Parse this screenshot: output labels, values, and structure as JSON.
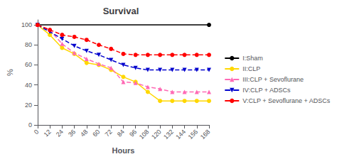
{
  "chart_data": {
    "type": "line",
    "title": "Survival",
    "xlabel": "Hours",
    "ylabel": "%",
    "xlim": [
      0,
      168
    ],
    "ylim": [
      0,
      105
    ],
    "xticks": [
      0,
      12,
      24,
      36,
      48,
      60,
      72,
      84,
      96,
      108,
      120,
      132,
      144,
      156,
      168
    ],
    "yticks": [
      0,
      20,
      40,
      60,
      80,
      100
    ],
    "grid": false,
    "legend": "right",
    "series": [
      {
        "name": "I:Sham",
        "color": "#000000",
        "marker": "circle",
        "line_style": "solid",
        "x": [
          0,
          168
        ],
        "values": [
          100,
          100
        ]
      },
      {
        "name": "II:CLP",
        "color": "#FFD700",
        "marker": "circle",
        "line_style": "solid",
        "x": [
          0,
          12,
          24,
          36,
          48,
          60,
          72,
          84,
          96,
          108,
          120,
          132,
          144,
          156,
          168
        ],
        "values": [
          100,
          90,
          77,
          71,
          62,
          60,
          55,
          48,
          43,
          33,
          24,
          24,
          24,
          24,
          24
        ]
      },
      {
        "name": "III:CLP + Sevoflurane",
        "color": "#FF69B4",
        "marker": "triangle",
        "line_style": "dashed",
        "x": [
          0,
          12,
          24,
          36,
          48,
          60,
          72,
          84,
          96,
          108,
          120,
          132,
          144,
          156,
          168
        ],
        "values": [
          100,
          95,
          81,
          72,
          66,
          61,
          57,
          43,
          42,
          38,
          36,
          33,
          33,
          33,
          33
        ]
      },
      {
        "name": "IV:CLP + ADSCs",
        "color": "#0000CD",
        "marker": "triangle-down",
        "line_style": "dashed",
        "x": [
          0,
          12,
          24,
          36,
          48,
          60,
          72,
          84,
          96,
          108,
          120,
          132,
          144,
          156,
          168
        ],
        "values": [
          100,
          93,
          86,
          79,
          74,
          70,
          65,
          60,
          57,
          55,
          55,
          55,
          55,
          55,
          55
        ]
      },
      {
        "name": "V:CLP + Sevoflurane + ADSCs",
        "color": "#FF0000",
        "marker": "circle",
        "line_style": "dashed",
        "x": [
          0,
          12,
          24,
          36,
          48,
          60,
          72,
          84,
          96,
          108,
          120,
          132,
          144,
          156,
          168
        ],
        "values": [
          100,
          95,
          90,
          88,
          85,
          80,
          76,
          71,
          70,
          70,
          70,
          70,
          70,
          70,
          70
        ]
      }
    ]
  }
}
